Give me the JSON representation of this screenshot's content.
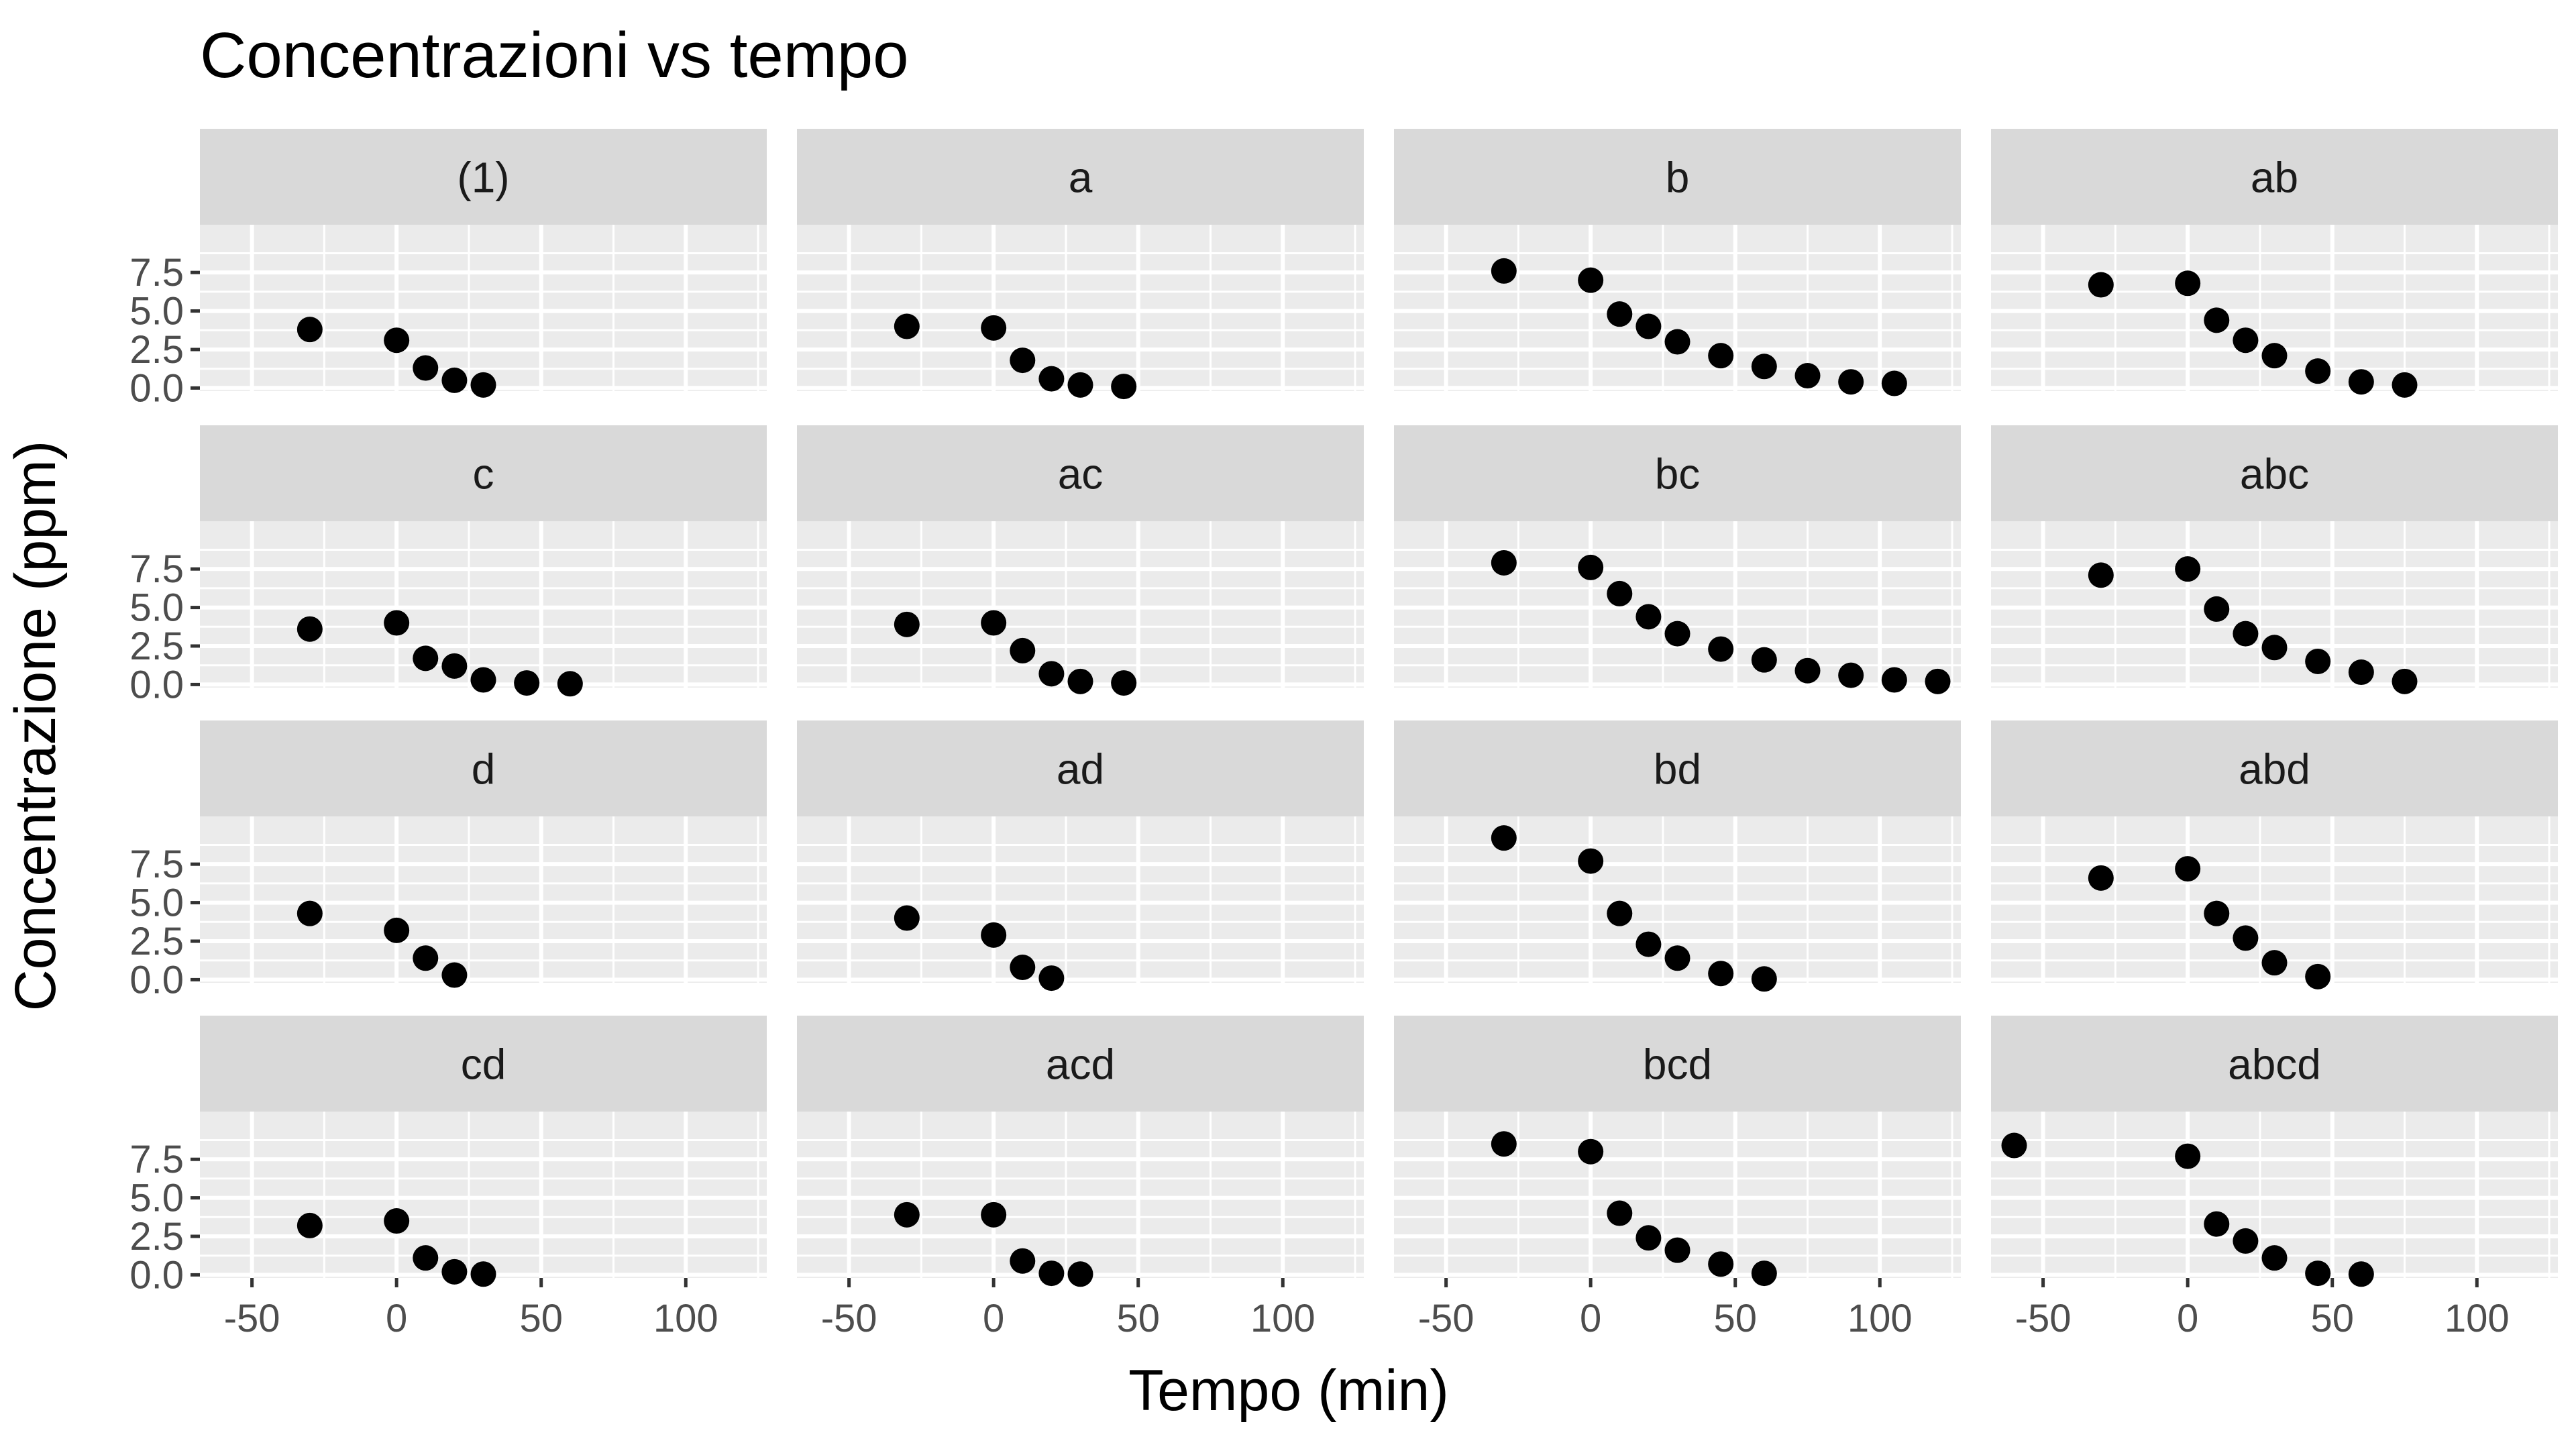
{
  "chart_data": {
    "type": "scatter",
    "title": "Concentrazioni vs tempo",
    "xlabel": "Tempo (min)",
    "ylabel": "Concentrazione (ppm)",
    "xlim": [
      -68,
      128
    ],
    "ylim": [
      -0.2,
      10.6
    ],
    "x_ticks": [
      -50,
      0,
      50,
      100
    ],
    "x_tick_labels": [
      "-50",
      "0",
      "50",
      "100"
    ],
    "y_ticks": [
      0,
      2.5,
      5,
      7.5
    ],
    "y_tick_labels": [
      "0.0",
      "2.5",
      "5.0",
      "7.5"
    ],
    "grid": true,
    "layout": "facet-wrap 4x4",
    "point_color": "#000000",
    "panel_background": "#ebebeb",
    "strip_background": "#d9d9d9",
    "panels": [
      {
        "label": "(1)",
        "x": [
          -30,
          0,
          10,
          20,
          30
        ],
        "y": [
          3.8,
          3.1,
          1.3,
          0.5,
          0.2
        ]
      },
      {
        "label": "a",
        "x": [
          -30,
          0,
          10,
          20,
          30,
          45
        ],
        "y": [
          4.0,
          3.9,
          1.8,
          0.6,
          0.2,
          0.1
        ]
      },
      {
        "label": "b",
        "x": [
          -30,
          0,
          10,
          20,
          30,
          45,
          60,
          75,
          90,
          105
        ],
        "y": [
          7.6,
          7.0,
          4.8,
          4.0,
          3.0,
          2.1,
          1.4,
          0.8,
          0.4,
          0.3
        ]
      },
      {
        "label": "ab",
        "x": [
          -30,
          0,
          10,
          20,
          30,
          45,
          60,
          75
        ],
        "y": [
          6.7,
          6.8,
          4.4,
          3.1,
          2.1,
          1.1,
          0.4,
          0.2
        ]
      },
      {
        "label": "c",
        "x": [
          -30,
          0,
          10,
          20,
          30,
          45,
          60
        ],
        "y": [
          3.6,
          4.0,
          1.7,
          1.2,
          0.3,
          0.1,
          0.05
        ]
      },
      {
        "label": "ac",
        "x": [
          -30,
          0,
          10,
          20,
          30,
          45
        ],
        "y": [
          3.9,
          4.0,
          2.2,
          0.7,
          0.2,
          0.1
        ]
      },
      {
        "label": "bc",
        "x": [
          -30,
          0,
          10,
          20,
          30,
          45,
          60,
          75,
          90,
          105,
          120
        ],
        "y": [
          7.9,
          7.6,
          5.9,
          4.4,
          3.3,
          2.3,
          1.6,
          0.9,
          0.6,
          0.3,
          0.2
        ]
      },
      {
        "label": "abc",
        "x": [
          -30,
          0,
          10,
          20,
          30,
          45,
          60,
          75
        ],
        "y": [
          7.1,
          7.5,
          4.9,
          3.3,
          2.4,
          1.5,
          0.8,
          0.2
        ]
      },
      {
        "label": "d",
        "x": [
          -30,
          0,
          10,
          20
        ],
        "y": [
          4.3,
          3.2,
          1.4,
          0.3
        ]
      },
      {
        "label": "ad",
        "x": [
          -30,
          0,
          10,
          20
        ],
        "y": [
          4.0,
          2.9,
          0.8,
          0.1
        ]
      },
      {
        "label": "bd",
        "x": [
          -30,
          0,
          10,
          20,
          30,
          45,
          60
        ],
        "y": [
          9.2,
          7.7,
          4.3,
          2.3,
          1.4,
          0.4,
          0.05
        ]
      },
      {
        "label": "abd",
        "x": [
          -30,
          0,
          10,
          20,
          30,
          45
        ],
        "y": [
          6.6,
          7.2,
          4.3,
          2.7,
          1.1,
          0.2
        ]
      },
      {
        "label": "cd",
        "x": [
          -30,
          0,
          10,
          20,
          30
        ],
        "y": [
          3.2,
          3.5,
          1.1,
          0.2,
          0.05
        ]
      },
      {
        "label": "acd",
        "x": [
          -30,
          0,
          10,
          20,
          30
        ],
        "y": [
          3.9,
          3.9,
          0.9,
          0.1,
          0.05
        ]
      },
      {
        "label": "bcd",
        "x": [
          -30,
          0,
          10,
          20,
          30,
          45,
          60
        ],
        "y": [
          8.5,
          8.0,
          4.0,
          2.4,
          1.6,
          0.7,
          0.1
        ]
      },
      {
        "label": "abcd",
        "x": [
          -60,
          0,
          10,
          20,
          30,
          45,
          60
        ],
        "y": [
          8.4,
          7.7,
          3.3,
          2.2,
          1.1,
          0.1,
          0.05
        ]
      }
    ]
  }
}
